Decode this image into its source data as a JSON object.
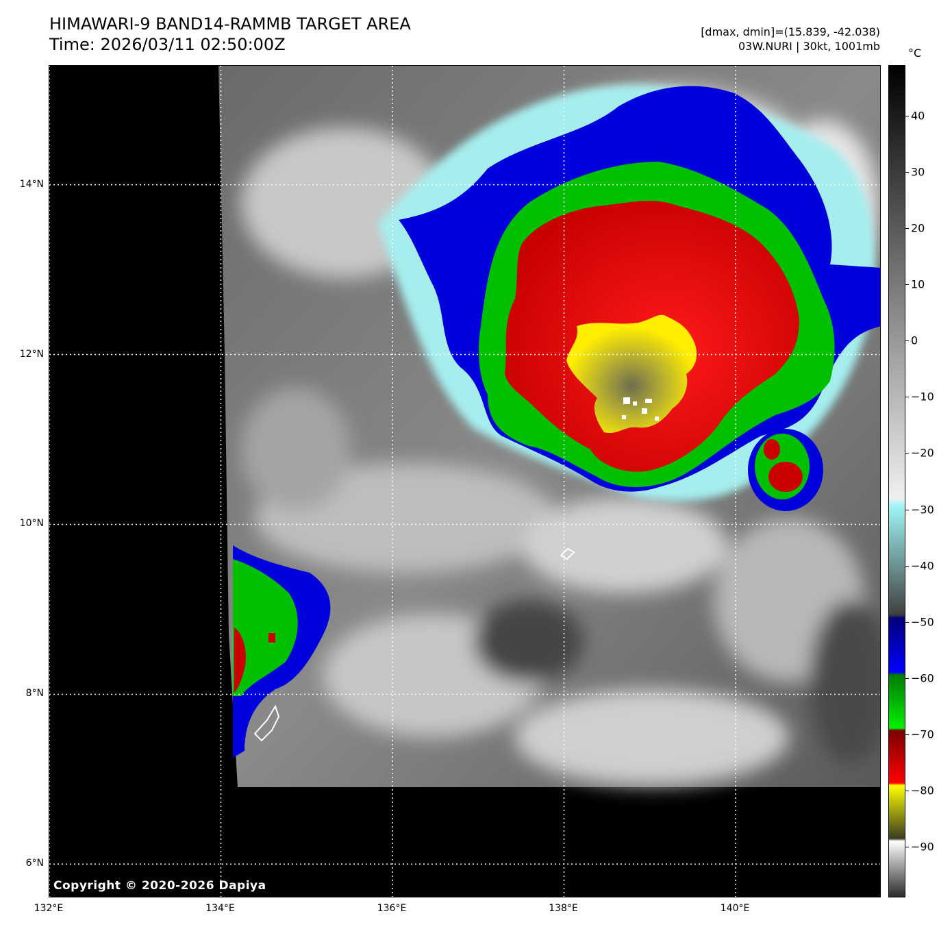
{
  "header": {
    "title_line1": "HIMAWARI-9 BAND14-RAMMB TARGET AREA",
    "title_line2": "Time: 2026/03/11 02:50:00Z",
    "stats_line": "[dmax, dmin]=(15.839, -42.038)",
    "storm_line": "03W.NURI | 30kt, 1001mb"
  },
  "map": {
    "copyright": "Copyright © 2020-2026 Dapiya",
    "lat_labels": [
      "14°N",
      "12°N",
      "10°N",
      "8°N",
      "6°N"
    ],
    "lon_labels": [
      "132°E",
      "134°E",
      "136°E",
      "138°E",
      "140°E"
    ],
    "extent": {
      "lon_min": 132.0,
      "lon_max": 141.7,
      "lat_min": 5.6,
      "lat_max": 15.4
    },
    "colors": {
      "no_data": "#000000",
      "cold_red": "#e00000",
      "core_yellow": "#ffee00",
      "green": "#00c000",
      "blue": "#0000dd",
      "cyan": "#a0f0f0"
    }
  },
  "colorbar": {
    "unit": "°C",
    "ticks": [
      "40",
      "30",
      "20",
      "10",
      "0",
      "−10",
      "−20",
      "−30",
      "−40",
      "−50",
      "−60",
      "−70",
      "−80",
      "−90"
    ],
    "range": [
      -99,
      49
    ]
  }
}
